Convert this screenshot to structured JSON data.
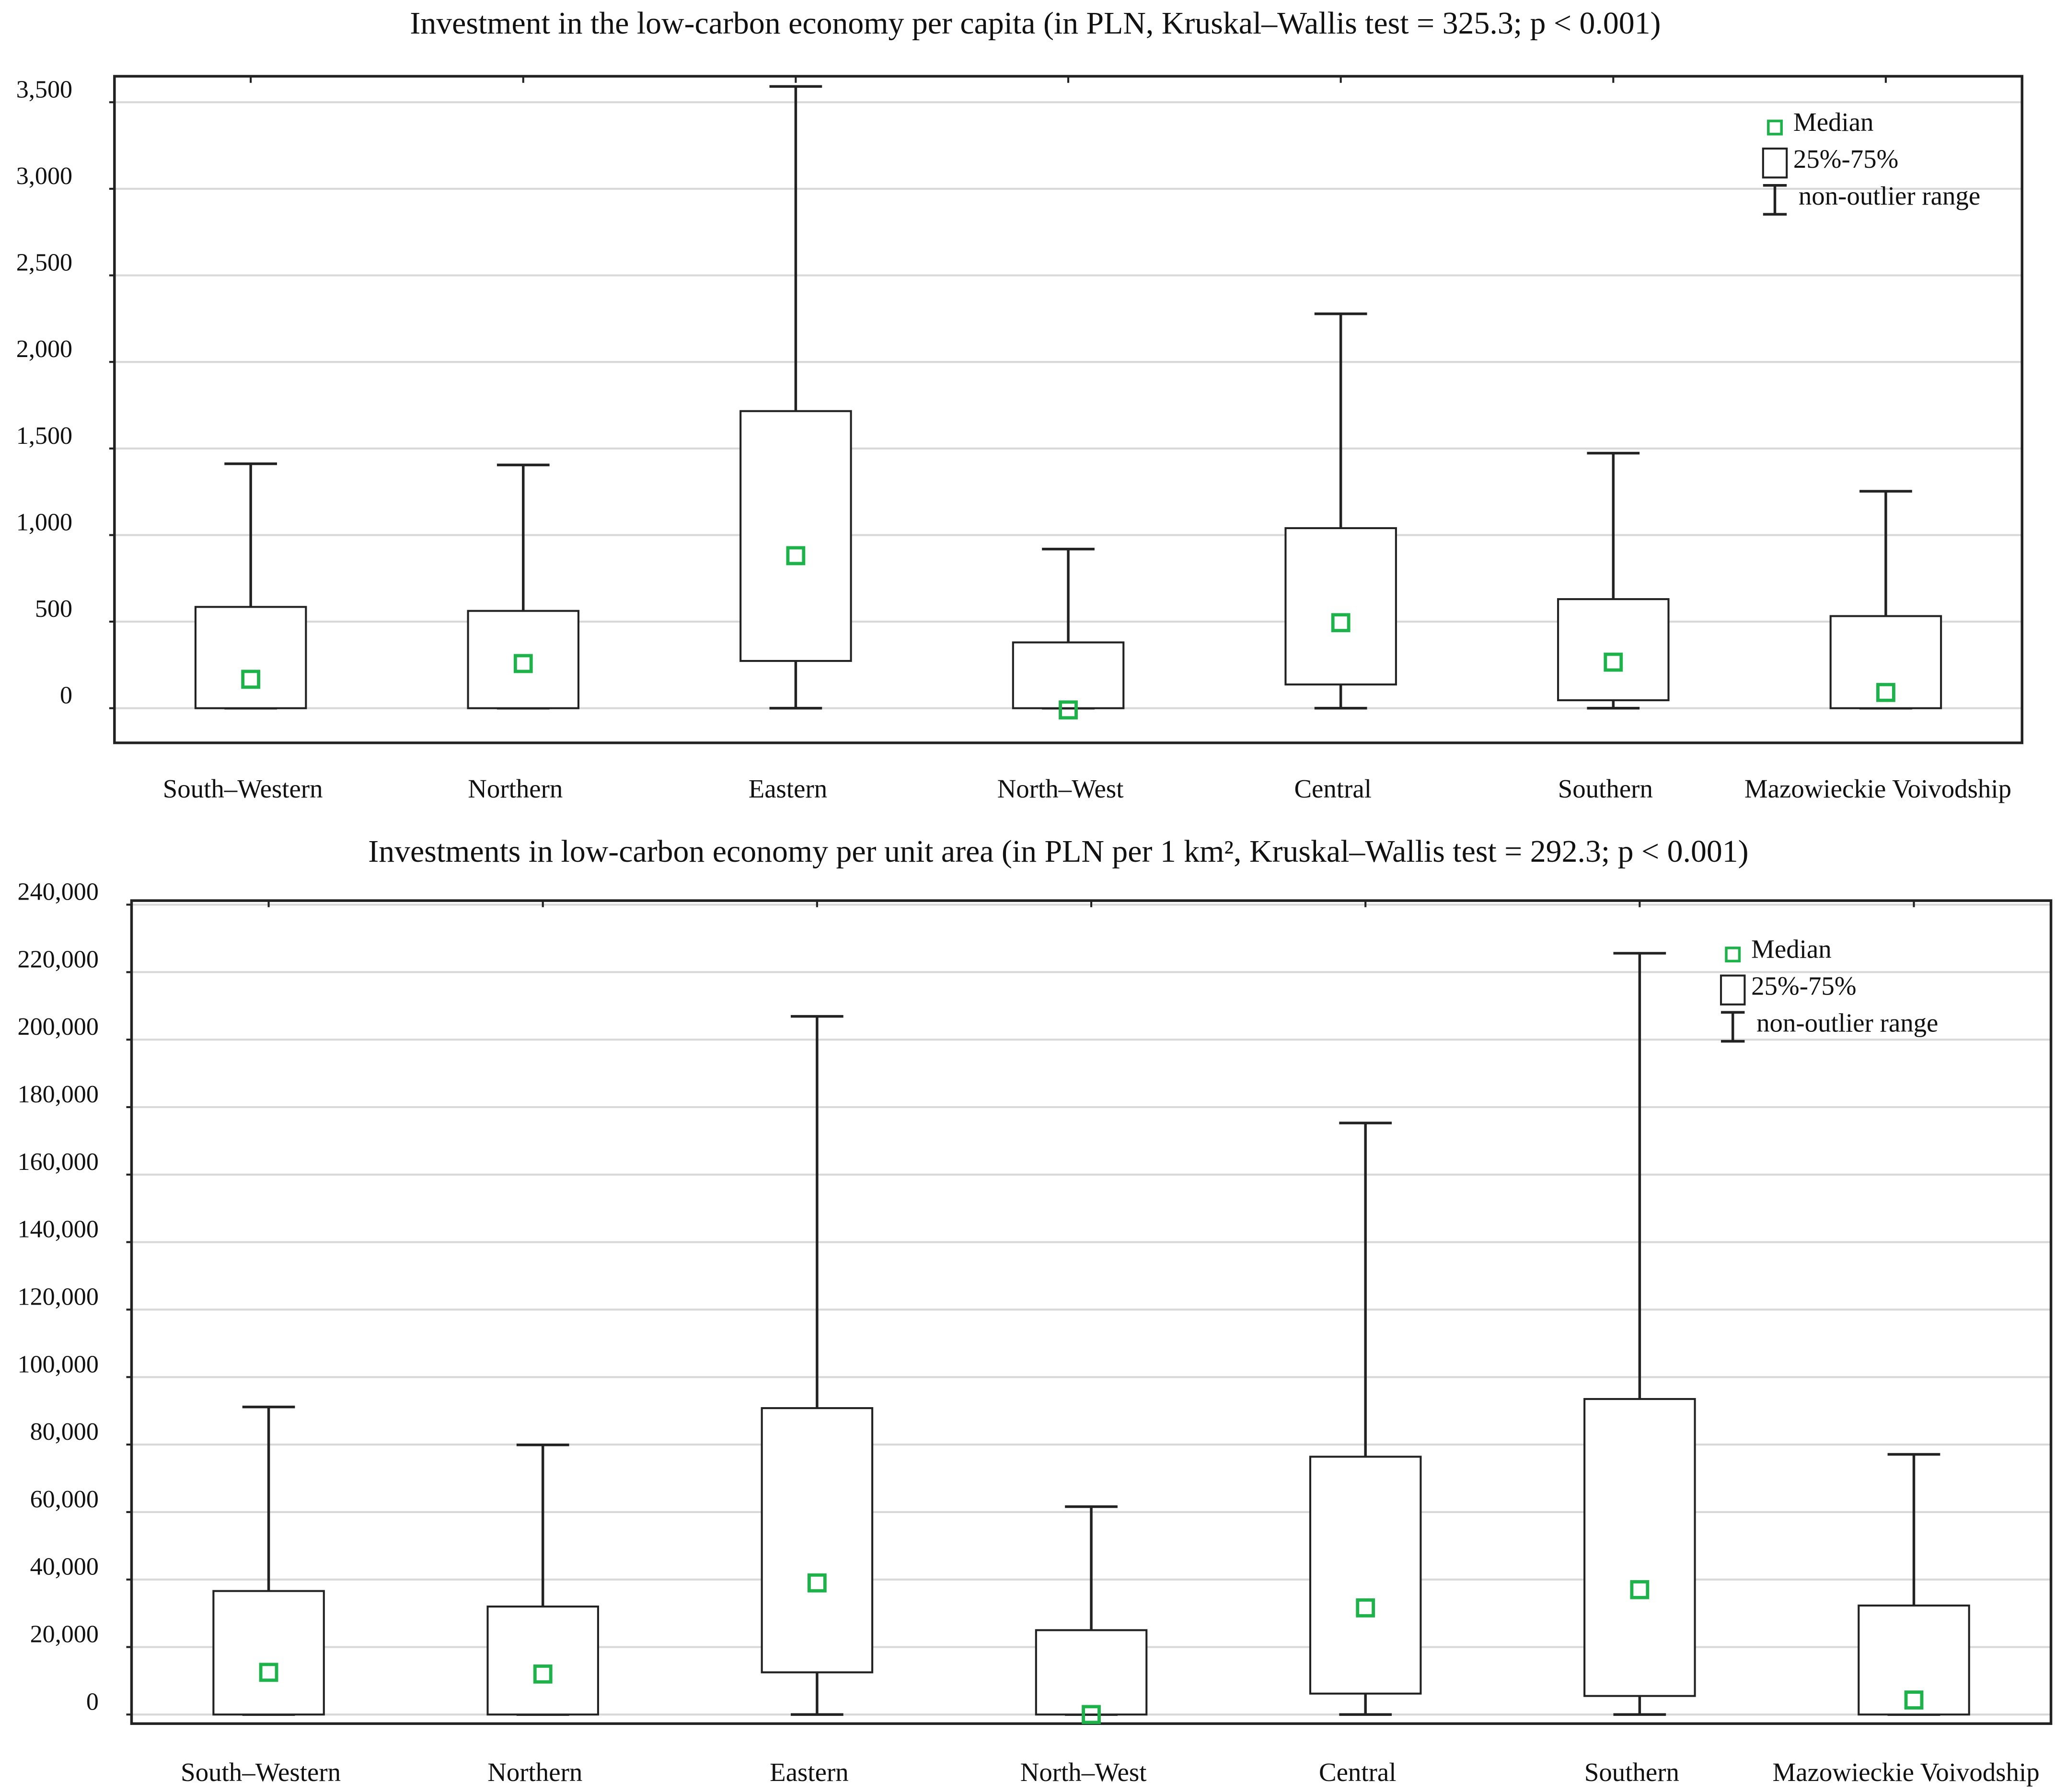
{
  "chart_data": [
    {
      "type": "box",
      "title": "Investment in the low-carbon economy per capita (in PLN, Kruskal–Wallis test = 325.3; p < 0.001)",
      "categories": [
        "South–Western",
        "Northern",
        "Eastern",
        "North–West",
        "Central",
        "Southern",
        "Mazowieckie Voivodship"
      ],
      "min": [
        0,
        0,
        0,
        0,
        0,
        0,
        0
      ],
      "q1": [
        0,
        0,
        273,
        0,
        137,
        46,
        0
      ],
      "median": [
        167,
        258,
        881,
        -10,
        494,
        266,
        91
      ],
      "q3": [
        585,
        562,
        1716,
        380,
        1040,
        630,
        532
      ],
      "max": [
        1412,
        1405,
        3591,
        919,
        2278,
        1473,
        1253
      ],
      "legend": {
        "median": "Median",
        "box": "25%-75%",
        "whisker": "non-outlier range"
      },
      "median_color": "#1db34a",
      "ylim": [
        -200,
        3650
      ],
      "yticks": [
        0,
        500,
        {
          "value": 1000,
          "label": "1,000"
        },
        {
          "value": 1500,
          "label": "1,500"
        },
        {
          "value": 2000,
          "label": "2,000"
        },
        {
          "value": 2500,
          "label": "2,500"
        },
        {
          "value": 3000,
          "label": "3,000"
        },
        {
          "value": 3500,
          "label": "3,500"
        }
      ],
      "grid": true
    },
    {
      "type": "box",
      "title": "Investments in low-carbon economy per unit area (in PLN per 1 km², Kruskal–Wallis test = 292.3; p < 0.001)",
      "categories": [
        "South–Western",
        "Northern",
        "Eastern",
        "North–West",
        "Central",
        "Southern",
        "Mazowieckie Voivodship"
      ],
      "min": [
        0,
        0,
        0,
        0,
        0,
        0,
        0
      ],
      "q1": [
        0,
        0,
        12500,
        0,
        6200,
        5500,
        0
      ],
      "median": [
        12500,
        12000,
        39000,
        0,
        31600,
        37000,
        4300
      ],
      "q3": [
        36600,
        32000,
        90800,
        25000,
        76400,
        93500,
        32300
      ],
      "max": [
        91150,
        79900,
        206900,
        61600,
        175300,
        225600,
        77100
      ],
      "legend": {
        "median": "Median",
        "box": "25%-75%",
        "whisker": "non-outlier range"
      },
      "median_color": "#1db34a",
      "ylim": [
        -2700,
        241200
      ],
      "yticks": [
        0,
        {
          "value": 20000,
          "label": "20,000"
        },
        {
          "value": 40000,
          "label": "40,000"
        },
        {
          "value": 60000,
          "label": "60,000"
        },
        {
          "value": 80000,
          "label": "80,000"
        },
        {
          "value": 100000,
          "label": "100,000"
        },
        {
          "value": 120000,
          "label": "120,000"
        },
        {
          "value": 140000,
          "label": "140,000"
        },
        {
          "value": 160000,
          "label": "160,000"
        },
        {
          "value": 180000,
          "label": "180,000"
        },
        {
          "value": 200000,
          "label": "200,000"
        },
        {
          "value": 220000,
          "label": "220,000"
        },
        {
          "value": 240000,
          "label": "240,000"
        }
      ],
      "grid": true
    }
  ]
}
